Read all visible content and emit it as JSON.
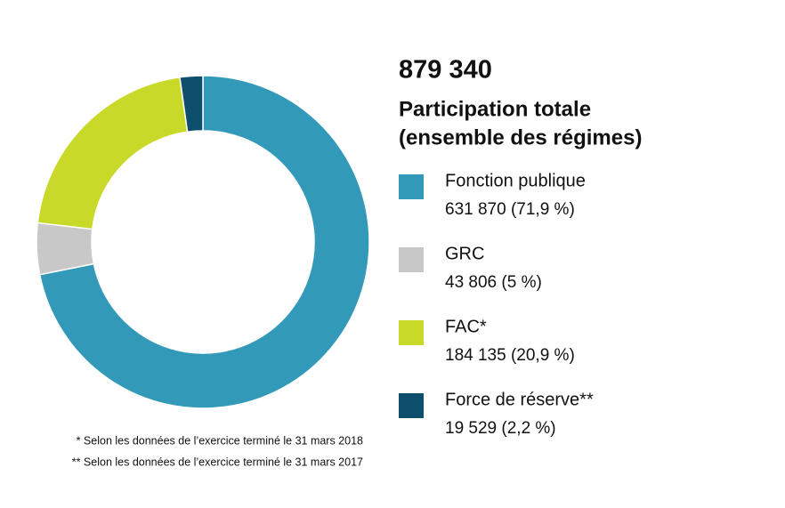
{
  "chart_data": {
    "type": "donut",
    "total": {
      "value": 879340,
      "label": "879 340"
    },
    "title": [
      "Participation totale",
      "(ensemble des régimes)"
    ],
    "categories": [
      "Fonction publique",
      "GRC",
      "FAC*",
      "Force de réserve**"
    ],
    "values": [
      631870,
      43806,
      184135,
      19529
    ],
    "value_labels": [
      "631 870 (71,9 %)",
      "43 806 (5 %)",
      "184 135 (20,9 %)",
      "19 529 (2,2 %)"
    ],
    "colors": [
      "#3399b8",
      "#c8c8c8",
      "#c9d92a",
      "#0f4f6e"
    ],
    "notes": [
      "* Selon les données de l’exercice terminé le 31 mars 2018",
      "** Selon les données de l’exercice terminé le 31 mars 2017"
    ]
  }
}
